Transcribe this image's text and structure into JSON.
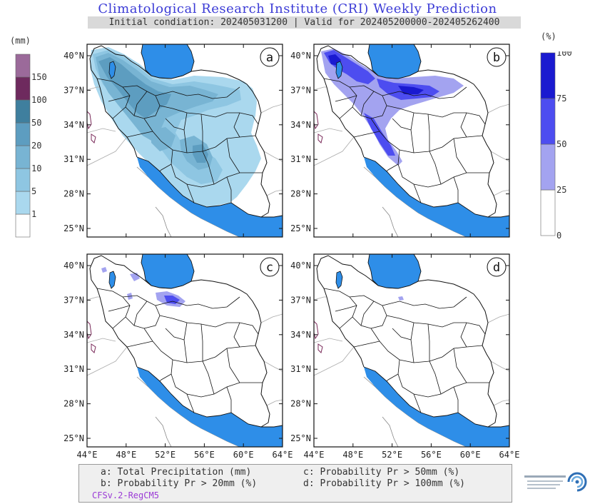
{
  "title": "Climatological Research Institute (CRI) Weekly Prediction",
  "subtitle": "Initial condiation: 202405031200 | Valid for 202405200000-202405262400",
  "precip_colorbar": {
    "unit": "(mm)",
    "levels": [
      "1",
      "5",
      "10",
      "20",
      "50",
      "100",
      "150"
    ],
    "colors": [
      "#ffffff",
      "#aad8ee",
      "#8ec6e2",
      "#78b4d3",
      "#5d9dc0",
      "#3f7f9e",
      "#6e2a5e",
      "#9b6a9a"
    ]
  },
  "prob_colorbar": {
    "unit": "(%)",
    "levels": [
      "0",
      "25",
      "50",
      "75",
      "100"
    ],
    "colors": [
      "#ffffff",
      "#a3a3f0",
      "#4d4df0",
      "#1a1ad0"
    ]
  },
  "axes": {
    "lat_ticks": [
      "25°N",
      "28°N",
      "31°N",
      "34°N",
      "37°N",
      "40°N"
    ],
    "lon_ticks": [
      "44°E",
      "48°E",
      "52°E",
      "56°E",
      "60°E",
      "64°E"
    ]
  },
  "panels": [
    {
      "id": "a",
      "label": "a"
    },
    {
      "id": "b",
      "label": "b"
    },
    {
      "id": "c",
      "label": "c"
    },
    {
      "id": "d",
      "label": "d"
    }
  ],
  "legend": {
    "a": "a: Total Precipitation (mm)",
    "b": "b: Probability Pr > 20mm (%)",
    "c": "c: Probability Pr > 50mm (%)",
    "d": "d: Probability Pr > 100mm (%)",
    "model": "CFSv.2-RegCM5"
  },
  "colors": {
    "sea": "#2e8ee8",
    "title": "#3b3bd6",
    "model": "#9b3bd6"
  }
}
